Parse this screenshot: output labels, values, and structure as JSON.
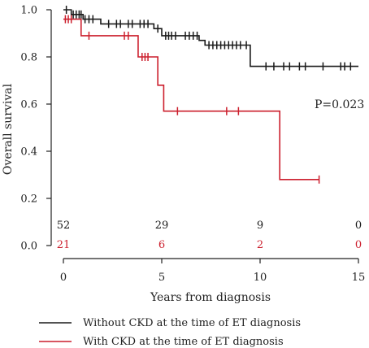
{
  "chart_data": {
    "type": "line",
    "chart_kind": "kaplan-meier step curve",
    "xlabel": "Years from diagnosis",
    "ylabel": "Overall survival",
    "xlim": [
      0,
      15
    ],
    "ylim": [
      0,
      1.0
    ],
    "x_ticks": [
      0,
      5,
      10,
      15
    ],
    "x_tick_labels": [
      "0",
      "5",
      "10",
      "15"
    ],
    "y_ticks": [
      0,
      0.2,
      0.4,
      0.6,
      0.8,
      1.0
    ],
    "y_tick_labels": [
      "0.0",
      "0.2",
      "0.4",
      "0.6",
      "0.8",
      "1.0"
    ],
    "grid": false,
    "legend_position": "bottom",
    "annotation": "P=0.023",
    "series": [
      {
        "name": "Without CKD at the time of ET diagnosis",
        "color": "#1a1a1a",
        "steps": [
          [
            0,
            1.0
          ],
          [
            0.4,
            0.98
          ],
          [
            1.0,
            0.96
          ],
          [
            1.9,
            0.94
          ],
          [
            4.6,
            0.92
          ],
          [
            5.0,
            0.89
          ],
          [
            6.9,
            0.87
          ],
          [
            7.2,
            0.85
          ],
          [
            9.5,
            0.76
          ],
          [
            15.0,
            0.76
          ]
        ],
        "censor_x": [
          0.15,
          0.5,
          0.65,
          0.8,
          0.9,
          1.1,
          1.3,
          1.5,
          2.3,
          2.7,
          2.9,
          3.3,
          3.5,
          3.9,
          4.1,
          4.3,
          4.8,
          5.2,
          5.35,
          5.5,
          5.7,
          6.2,
          6.4,
          6.6,
          6.8,
          7.4,
          7.6,
          7.8,
          8.0,
          8.2,
          8.4,
          8.6,
          8.8,
          9.0,
          9.3,
          10.3,
          10.7,
          11.2,
          11.5,
          12.0,
          12.3,
          13.2,
          14.1,
          14.3,
          14.6
        ]
      },
      {
        "name": "With CKD at the time of ET diagnosis",
        "color": "#cc1f2d",
        "steps": [
          [
            0,
            0.96
          ],
          [
            0.9,
            0.89
          ],
          [
            3.8,
            0.8
          ],
          [
            4.8,
            0.68
          ],
          [
            5.1,
            0.57
          ],
          [
            11.0,
            0.28
          ],
          [
            13.0,
            0.28
          ]
        ],
        "censor_x": [
          0.1,
          0.25,
          0.4,
          1.3,
          3.1,
          3.3,
          4.0,
          4.15,
          4.3,
          5.8,
          8.3,
          8.9,
          13.0
        ]
      }
    ],
    "risk_table": {
      "times": [
        0,
        5,
        10,
        15
      ],
      "rows": [
        {
          "series": "Without CKD at the time of ET diagnosis",
          "color": "#1a1a1a",
          "values": [
            "52",
            "29",
            "9",
            "0"
          ]
        },
        {
          "series": "With CKD at the time of ET diagnosis",
          "color": "#cc1f2d",
          "values": [
            "21",
            "6",
            "2",
            "0"
          ]
        }
      ]
    }
  }
}
